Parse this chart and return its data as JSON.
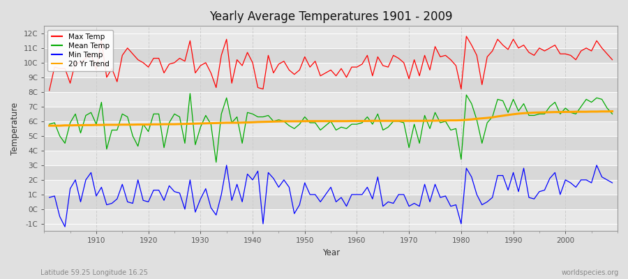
{
  "title": "Yearly Average Temperatures 1901 - 2009",
  "xlabel": "Year",
  "ylabel": "Temperature",
  "subtitle_left": "Latitude 59.25 Longitude 16.25",
  "subtitle_right": "worldspecies.org",
  "year_start": 1901,
  "year_end": 2009,
  "ylim": [
    -1.5,
    12.5
  ],
  "yticks": [
    -1,
    0,
    1,
    2,
    3,
    4,
    5,
    6,
    7,
    8,
    9,
    10,
    11,
    12
  ],
  "ytick_labels": [
    "-1C",
    "0C",
    "1C",
    "2C",
    "3C",
    "4C",
    "5C",
    "6C",
    "7C",
    "8C",
    "9C",
    "10C",
    "11C",
    "12C"
  ],
  "fig_bg_color": "#e0e0e0",
  "plot_bg_color": "#f0f0f0",
  "band_colors": [
    "#e8e8e8",
    "#d8d8d8"
  ],
  "grid_color": "#ffffff",
  "vgrid_color": "#cccccc",
  "legend": [
    {
      "label": "Max Temp",
      "color": "#ff0000"
    },
    {
      "label": "Mean Temp",
      "color": "#00aa00"
    },
    {
      "label": "Min Temp",
      "color": "#0000ff"
    },
    {
      "label": "20 Yr Trend",
      "color": "#ffa500"
    }
  ],
  "max_temp": [
    8.1,
    9.7,
    9.6,
    9.6,
    8.6,
    10.0,
    10.0,
    10.3,
    10.6,
    9.5,
    11.5,
    9.0,
    9.6,
    8.7,
    10.5,
    11.0,
    10.6,
    10.2,
    10.0,
    9.7,
    10.3,
    10.3,
    9.3,
    9.9,
    10.0,
    10.3,
    10.1,
    11.5,
    9.3,
    9.8,
    10.0,
    9.3,
    8.3,
    10.5,
    11.6,
    8.6,
    10.2,
    9.8,
    10.7,
    10.0,
    8.3,
    8.2,
    10.5,
    9.3,
    9.9,
    10.1,
    9.5,
    9.2,
    9.5,
    10.4,
    9.7,
    10.1,
    9.1,
    9.3,
    9.5,
    9.1,
    9.6,
    9.0,
    9.7,
    9.7,
    9.9,
    10.5,
    9.1,
    10.4,
    9.8,
    9.7,
    10.5,
    10.3,
    10.0,
    8.9,
    10.2,
    9.1,
    10.5,
    9.5,
    11.1,
    10.4,
    10.5,
    10.2,
    9.8,
    8.2,
    11.8,
    11.2,
    10.5,
    8.5,
    10.4,
    10.8,
    11.6,
    11.2,
    10.9,
    11.6,
    11.0,
    11.2,
    10.7,
    10.5,
    11.0,
    10.8,
    11.0,
    11.2,
    10.6,
    10.6,
    10.5,
    10.2,
    10.8,
    11.0,
    10.8,
    11.5,
    11.0,
    10.6,
    10.2
  ],
  "mean_temp": [
    5.8,
    5.9,
    5.0,
    4.5,
    5.9,
    6.5,
    5.2,
    6.4,
    6.6,
    5.8,
    7.3,
    4.1,
    5.4,
    5.4,
    6.5,
    6.3,
    5.0,
    4.3,
    5.8,
    5.3,
    6.5,
    6.5,
    4.2,
    5.9,
    6.5,
    6.3,
    4.5,
    7.9,
    4.4,
    5.6,
    6.4,
    5.8,
    3.2,
    6.5,
    7.6,
    5.9,
    6.3,
    4.5,
    6.6,
    6.5,
    6.3,
    6.3,
    6.4,
    6.0,
    6.1,
    6.0,
    5.7,
    5.5,
    5.8,
    6.3,
    5.9,
    5.9,
    5.4,
    5.7,
    6.0,
    5.4,
    5.6,
    5.5,
    5.8,
    5.8,
    5.9,
    6.3,
    5.8,
    6.5,
    5.4,
    5.6,
    6.0,
    6.0,
    5.9,
    4.2,
    5.8,
    4.5,
    6.4,
    5.5,
    6.6,
    5.9,
    6.0,
    5.4,
    5.5,
    3.4,
    7.8,
    7.2,
    6.1,
    4.5,
    5.9,
    6.3,
    7.5,
    7.4,
    6.6,
    7.5,
    6.7,
    7.2,
    6.4,
    6.4,
    6.5,
    6.5,
    7.0,
    7.3,
    6.5,
    6.9,
    6.6,
    6.5,
    7.0,
    7.5,
    7.3,
    7.6,
    7.5,
    6.9,
    6.5
  ],
  "min_temp": [
    0.8,
    0.9,
    -0.5,
    -1.2,
    1.4,
    2.0,
    0.5,
    2.0,
    2.5,
    0.9,
    1.5,
    0.3,
    0.4,
    0.7,
    1.7,
    0.5,
    0.4,
    2.0,
    0.6,
    0.5,
    1.3,
    1.3,
    0.6,
    1.6,
    1.2,
    1.1,
    0.0,
    2.0,
    -0.2,
    0.7,
    1.4,
    0.1,
    -0.4,
    1.0,
    3.0,
    0.6,
    1.7,
    0.5,
    2.4,
    2.0,
    2.6,
    -1.0,
    2.5,
    2.1,
    1.5,
    2.0,
    1.5,
    -0.3,
    0.3,
    1.8,
    1.0,
    1.0,
    0.5,
    1.0,
    1.5,
    0.5,
    0.8,
    0.2,
    1.0,
    1.0,
    1.0,
    1.5,
    0.7,
    2.2,
    0.2,
    0.5,
    0.4,
    1.0,
    1.0,
    0.2,
    0.4,
    0.2,
    1.7,
    0.5,
    1.7,
    0.8,
    0.9,
    0.2,
    0.3,
    -1.0,
    2.8,
    2.2,
    1.0,
    0.3,
    0.5,
    0.8,
    2.3,
    2.3,
    1.3,
    2.5,
    1.2,
    2.8,
    0.8,
    0.7,
    1.2,
    1.3,
    2.1,
    2.5,
    1.0,
    2.0,
    1.8,
    1.5,
    2.0,
    2.0,
    1.8,
    3.0,
    2.2,
    2.0,
    1.8
  ],
  "trend": [
    5.7,
    5.7,
    5.7,
    5.72,
    5.72,
    5.73,
    5.73,
    5.74,
    5.74,
    5.75,
    5.75,
    5.76,
    5.76,
    5.76,
    5.77,
    5.77,
    5.77,
    5.78,
    5.78,
    5.78,
    5.79,
    5.79,
    5.8,
    5.8,
    5.8,
    5.81,
    5.82,
    5.83,
    5.84,
    5.85,
    5.86,
    5.87,
    5.88,
    5.89,
    5.9,
    5.9,
    5.9,
    5.91,
    5.92,
    5.93,
    5.95,
    5.96,
    5.97,
    5.98,
    5.99,
    6.0,
    6.0,
    6.0,
    6.0,
    6.01,
    6.01,
    6.01,
    6.01,
    6.01,
    6.01,
    6.01,
    6.01,
    6.01,
    6.02,
    6.02,
    6.02,
    6.02,
    6.03,
    6.03,
    6.03,
    6.03,
    6.03,
    6.03,
    6.03,
    6.03,
    6.03,
    6.03,
    6.03,
    6.04,
    6.04,
    6.05,
    6.05,
    6.06,
    6.06,
    6.07,
    6.1,
    6.13,
    6.17,
    6.2,
    6.23,
    6.27,
    6.33,
    6.38,
    6.43,
    6.48,
    6.52,
    6.55,
    6.57,
    6.59,
    6.6,
    6.61,
    6.62,
    6.63,
    6.63,
    6.64,
    6.64,
    6.65,
    6.65,
    6.65,
    6.66,
    6.66,
    6.67,
    6.67,
    6.68
  ],
  "xticks": [
    1910,
    1920,
    1930,
    1940,
    1950,
    1960,
    1970,
    1980,
    1990,
    2000
  ],
  "xlim": [
    1900,
    2010
  ]
}
